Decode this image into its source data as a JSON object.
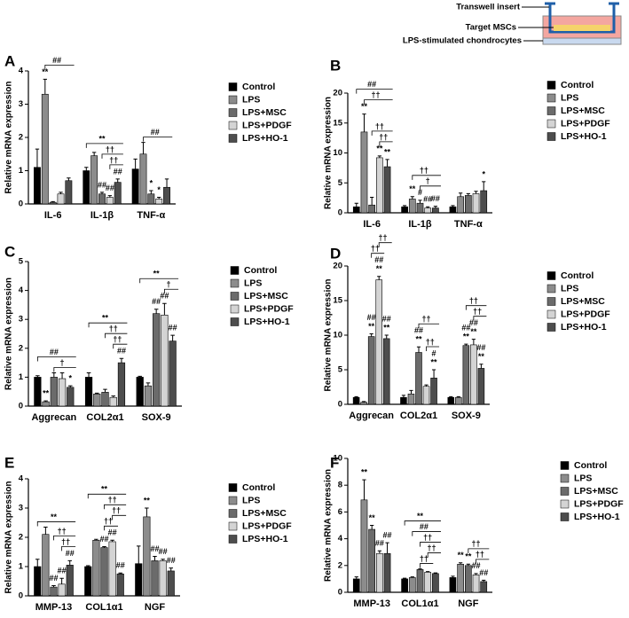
{
  "inset": {
    "labels": [
      "Transwell insert",
      "Target MSCs",
      "LPS-stimulated chondrocytes"
    ]
  },
  "chart_data": [
    {
      "type": "bar",
      "panel_label": "A",
      "ylabel": "Relative mRNA expression",
      "categories": [
        "IL-6",
        "IL-1β",
        "TNF-α"
      ],
      "ylim": [
        0,
        4
      ],
      "yticks": [
        0,
        1,
        2,
        3,
        4
      ],
      "series": [
        {
          "name": "Control",
          "color": "#000000",
          "values": [
            1.1,
            1.0,
            1.05
          ],
          "errors": [
            0.55,
            0.1,
            0.3
          ],
          "annotations": [
            null,
            null,
            null
          ]
        },
        {
          "name": "LPS",
          "color": "#8c8c8c",
          "values": [
            3.3,
            1.45,
            1.5
          ],
          "errors": [
            0.45,
            0.1,
            0.35
          ],
          "annotations": [
            [
              "**"
            ],
            null,
            null
          ]
        },
        {
          "name": "LPS+MSC",
          "color": "#6b6b6b",
          "values": [
            0.05,
            0.3,
            0.3
          ],
          "errors": [
            0.02,
            0.05,
            0.1
          ],
          "annotations": [
            null,
            [
              "##"
            ],
            [
              "*"
            ]
          ]
        },
        {
          "name": "LPS+PDGF",
          "color": "#d4d4d4",
          "values": [
            0.3,
            0.2,
            0.15
          ],
          "errors": [
            0.05,
            0.05,
            0.05
          ],
          "annotations": [
            null,
            [
              "##"
            ],
            [
              "*"
            ]
          ]
        },
        {
          "name": "LPS+HO-1",
          "color": "#4d4d4d",
          "values": [
            0.7,
            0.65,
            0.5
          ],
          "errors": [
            0.08,
            0.1,
            0.25
          ],
          "annotations": [
            null,
            [
              "##"
            ],
            null
          ]
        }
      ],
      "brackets": [
        {
          "text": "##",
          "category": 0,
          "from": 1,
          "to": 4
        },
        {
          "text": "††",
          "category": 1,
          "from": 3,
          "to": 4
        },
        {
          "text": "††",
          "category": 1,
          "from": 2,
          "to": 4
        },
        {
          "text": "**",
          "category": 1,
          "from": 0,
          "to": 4
        },
        {
          "text": "##",
          "category": 2,
          "from": 1,
          "to": 4
        }
      ]
    },
    {
      "type": "bar",
      "panel_label": "B",
      "ylabel": "Relative mRNA expression",
      "categories": [
        "IL-6",
        "IL-1β",
        "TNF-α"
      ],
      "ylim": [
        0,
        20
      ],
      "yticks": [
        0,
        5,
        10,
        15,
        20
      ],
      "series": [
        {
          "name": "Control",
          "color": "#000000",
          "values": [
            1,
            1,
            1
          ],
          "errors": [
            0.6,
            0.2,
            0.2
          ],
          "annotations": [
            null,
            null,
            null
          ]
        },
        {
          "name": "LPS",
          "color": "#8c8c8c",
          "values": [
            13.5,
            2.3,
            2.7
          ],
          "errors": [
            3,
            0.4,
            0.6
          ],
          "annotations": [
            [
              "**"
            ],
            [
              "**"
            ],
            null
          ]
        },
        {
          "name": "LPS+MSC",
          "color": "#6b6b6b",
          "values": [
            1.3,
            1.6,
            2.9
          ],
          "errors": [
            1.3,
            0.5,
            0.3
          ],
          "annotations": [
            null,
            [
              "#"
            ],
            null
          ]
        },
        {
          "name": "LPS+PDGF",
          "color": "#d4d4d4",
          "values": [
            9.2,
            0.8,
            3.2
          ],
          "errors": [
            0.3,
            0.2,
            0.4
          ],
          "annotations": [
            [
              "**"
            ],
            [
              "##"
            ],
            null
          ]
        },
        {
          "name": "LPS+HO-1",
          "color": "#4d4d4d",
          "values": [
            7.7,
            0.8,
            3.7
          ],
          "errors": [
            1.2,
            0.3,
            1.5
          ],
          "annotations": [
            [
              "**"
            ],
            [
              "##"
            ],
            [
              "*"
            ]
          ]
        }
      ],
      "brackets": [
        {
          "text": "††",
          "category": 0,
          "from": 3,
          "to": 4
        },
        {
          "text": "††",
          "category": 0,
          "from": 2,
          "to": 4
        },
        {
          "text": "††",
          "category": 0,
          "from": 1,
          "to": 4
        },
        {
          "text": "##",
          "category": 0,
          "from": 0,
          "to": 4
        },
        {
          "text": "†",
          "category": 1,
          "from": 2,
          "to": 4
        },
        {
          "text": "††",
          "category": 1,
          "from": 1,
          "to": 4
        }
      ]
    },
    {
      "type": "bar",
      "panel_label": "C",
      "ylabel": "Relative mRNA expression",
      "categories": [
        "Aggrecan",
        "COL2α1",
        "SOX-9"
      ],
      "ylim": [
        0,
        5
      ],
      "yticks": [
        0,
        1,
        2,
        3,
        4,
        5
      ],
      "series": [
        {
          "name": "Control",
          "color": "#000000",
          "values": [
            1,
            1,
            1
          ],
          "errors": [
            0.05,
            0.15,
            0.03
          ],
          "annotations": [
            null,
            null,
            null
          ]
        },
        {
          "name": "LPS",
          "color": "#8c8c8c",
          "values": [
            0.15,
            0.42,
            0.7
          ],
          "errors": [
            0.03,
            0.03,
            0.1
          ],
          "annotations": [
            [
              "**"
            ],
            null,
            null
          ]
        },
        {
          "name": "LPS+MSC",
          "color": "#6b6b6b",
          "values": [
            1.0,
            0.48,
            3.2
          ],
          "errors": [
            0.15,
            0.1,
            0.15
          ],
          "annotations": [
            null,
            null,
            [
              "##"
            ]
          ]
        },
        {
          "name": "LPS+PDGF",
          "color": "#d4d4d4",
          "values": [
            0.95,
            0.3,
            3.15
          ],
          "errors": [
            0.2,
            0.05,
            0.4
          ],
          "annotations": [
            null,
            null,
            [
              "##"
            ]
          ]
        },
        {
          "name": "LPS+HO-1",
          "color": "#4d4d4d",
          "values": [
            0.65,
            1.5,
            2.25
          ],
          "errors": [
            0.05,
            0.15,
            0.2
          ],
          "annotations": [
            [
              "*"
            ],
            [
              "##"
            ],
            [
              "##"
            ]
          ]
        }
      ],
      "brackets": [
        {
          "text": "†",
          "category": 0,
          "from": 2,
          "to": 4
        },
        {
          "text": "##",
          "category": 0,
          "from": 0,
          "to": 4
        },
        {
          "text": "††",
          "category": 1,
          "from": 3,
          "to": 4
        },
        {
          "text": "††",
          "category": 1,
          "from": 2,
          "to": 4
        },
        {
          "text": "**",
          "category": 1,
          "from": 0,
          "to": 4
        },
        {
          "text": "†",
          "category": 2,
          "from": 3,
          "to": 4
        },
        {
          "text": "**",
          "category": 2,
          "from": 0,
          "to": 4
        }
      ]
    },
    {
      "type": "bar",
      "panel_label": "D",
      "ylabel": "Relative mRNA expression",
      "categories": [
        "Aggrecan",
        "COL2α1",
        "SOX-9"
      ],
      "ylim": [
        0,
        20
      ],
      "yticks": [
        0,
        5,
        10,
        15,
        20
      ],
      "series": [
        {
          "name": "Control",
          "color": "#000000",
          "values": [
            1,
            1,
            1
          ],
          "errors": [
            0.1,
            0.3,
            0.1
          ],
          "annotations": [
            null,
            null,
            null
          ]
        },
        {
          "name": "LPS",
          "color": "#8c8c8c",
          "values": [
            0.3,
            1.5,
            1
          ],
          "errors": [
            0.1,
            0.5,
            0.1
          ],
          "annotations": [
            null,
            null,
            null
          ]
        },
        {
          "name": "LPS+MSC",
          "color": "#6b6b6b",
          "values": [
            9.8,
            7.5,
            8.5
          ],
          "errors": [
            0.4,
            0.8,
            0.2
          ],
          "annotations": [
            [
              "**",
              "##"
            ],
            [
              "**",
              "##"
            ],
            [
              "**",
              "##"
            ]
          ]
        },
        {
          "name": "LPS+PDGF",
          "color": "#d4d4d4",
          "values": [
            18,
            2.6,
            8.6
          ],
          "errors": [
            0.5,
            0.2,
            0.8
          ],
          "annotations": [
            [
              "**",
              "##"
            ],
            null,
            [
              "**",
              "##"
            ]
          ]
        },
        {
          "name": "LPS+HO-1",
          "color": "#4d4d4d",
          "values": [
            9.5,
            3.8,
            5.2
          ],
          "errors": [
            0.5,
            1.2,
            0.6
          ],
          "annotations": [
            [
              "**",
              "##"
            ],
            [
              "**",
              "#"
            ],
            [
              "**",
              "##"
            ]
          ]
        }
      ],
      "brackets": [
        {
          "text": "††",
          "category": 0,
          "from": 2,
          "to": 3
        },
        {
          "text": "††",
          "category": 0,
          "from": 3,
          "to": 4
        },
        {
          "text": "††",
          "category": 1,
          "from": 3,
          "to": 4
        },
        {
          "text": "††",
          "category": 1,
          "from": 2,
          "to": 4
        },
        {
          "text": "††",
          "category": 2,
          "from": 3,
          "to": 4
        },
        {
          "text": "††",
          "category": 2,
          "from": 2,
          "to": 4
        }
      ]
    },
    {
      "type": "bar",
      "panel_label": "E",
      "ylabel": "Relative mRNA expression",
      "categories": [
        "MMP-13",
        "COL1α1",
        "NGF"
      ],
      "ylim": [
        0,
        4
      ],
      "yticks": [
        0,
        1,
        2,
        3,
        4
      ],
      "series": [
        {
          "name": "Control",
          "color": "#000000",
          "values": [
            1,
            1,
            1.1
          ],
          "errors": [
            0.25,
            0.03,
            0.6
          ],
          "annotations": [
            null,
            null,
            null
          ]
        },
        {
          "name": "LPS",
          "color": "#8c8c8c",
          "values": [
            2.1,
            1.9,
            2.7
          ],
          "errors": [
            0.25,
            0.03,
            0.3
          ],
          "annotations": [
            null,
            null,
            [
              "**"
            ]
          ]
        },
        {
          "name": "LPS+MSC",
          "color": "#6b6b6b",
          "values": [
            0.3,
            1.65,
            1.2
          ],
          "errors": [
            0.05,
            0.03,
            0.15
          ],
          "annotations": [
            [
              "##"
            ],
            [
              "##"
            ],
            [
              "##"
            ]
          ]
        },
        {
          "name": "LPS+PDGF",
          "color": "#d4d4d4",
          "values": [
            0.4,
            1.85,
            1.2
          ],
          "errors": [
            0.2,
            0.05,
            0.05
          ],
          "annotations": [
            [
              "##"
            ],
            [
              "##"
            ],
            [
              "##"
            ]
          ]
        },
        {
          "name": "LPS+HO-1",
          "color": "#4d4d4d",
          "values": [
            1.05,
            0.75,
            0.85
          ],
          "errors": [
            0.15,
            0.03,
            0.1
          ],
          "annotations": [
            [
              "##"
            ],
            [
              "##"
            ],
            [
              "##"
            ]
          ]
        }
      ],
      "brackets": [
        {
          "text": "††",
          "category": 0,
          "from": 3,
          "to": 4
        },
        {
          "text": "††",
          "category": 0,
          "from": 2,
          "to": 4
        },
        {
          "text": "**",
          "category": 0,
          "from": 0,
          "to": 4
        },
        {
          "text": "††",
          "category": 1,
          "from": 2,
          "to": 3
        },
        {
          "text": "††",
          "category": 1,
          "from": 3,
          "to": 4
        },
        {
          "text": "††",
          "category": 1,
          "from": 2,
          "to": 4
        },
        {
          "text": "**",
          "category": 1,
          "from": 0,
          "to": 4
        }
      ]
    },
    {
      "type": "bar",
      "panel_label": "F",
      "ylabel": "Relative mRNA expression",
      "categories": [
        "MMP-13",
        "COL1α1",
        "NGF"
      ],
      "ylim": [
        0,
        10
      ],
      "yticks": [
        0,
        2,
        4,
        6,
        8,
        10
      ],
      "series": [
        {
          "name": "Control",
          "color": "#000000",
          "values": [
            1,
            1,
            1.1
          ],
          "errors": [
            0.15,
            0.05,
            0.1
          ],
          "annotations": [
            null,
            null,
            null
          ]
        },
        {
          "name": "LPS",
          "color": "#8c8c8c",
          "values": [
            6.9,
            1.1,
            2.1
          ],
          "errors": [
            1.5,
            0.05,
            0.1
          ],
          "annotations": [
            [
              "**"
            ],
            null,
            [
              "**"
            ]
          ]
        },
        {
          "name": "LPS+MSC",
          "color": "#6b6b6b",
          "values": [
            4.7,
            1.7,
            2.0
          ],
          "errors": [
            0.3,
            0.05,
            0.1
          ],
          "annotations": [
            [
              "**"
            ],
            null,
            [
              "**"
            ]
          ]
        },
        {
          "name": "LPS+PDGF",
          "color": "#d4d4d4",
          "values": [
            2.9,
            1.5,
            1.3
          ],
          "errors": [
            0.2,
            0.05,
            0.1
          ],
          "annotations": [
            [
              "##"
            ],
            null,
            [
              "##"
            ]
          ]
        },
        {
          "name": "LPS+HO-1",
          "color": "#4d4d4d",
          "values": [
            2.9,
            1.4,
            0.8
          ],
          "errors": [
            0.8,
            0.05,
            0.1
          ],
          "annotations": [
            [
              "##"
            ],
            null,
            [
              "##"
            ]
          ]
        }
      ],
      "brackets": [
        {
          "text": "††",
          "category": 1,
          "from": 2,
          "to": 3
        },
        {
          "text": "††",
          "category": 1,
          "from": 3,
          "to": 4
        },
        {
          "text": "††",
          "category": 1,
          "from": 2,
          "to": 4
        },
        {
          "text": "##",
          "category": 1,
          "from": 1,
          "to": 4
        },
        {
          "text": "**",
          "category": 1,
          "from": 0,
          "to": 4
        },
        {
          "text": "††",
          "category": 2,
          "from": 3,
          "to": 4
        },
        {
          "text": "††",
          "category": 2,
          "from": 2,
          "to": 4
        }
      ]
    }
  ]
}
